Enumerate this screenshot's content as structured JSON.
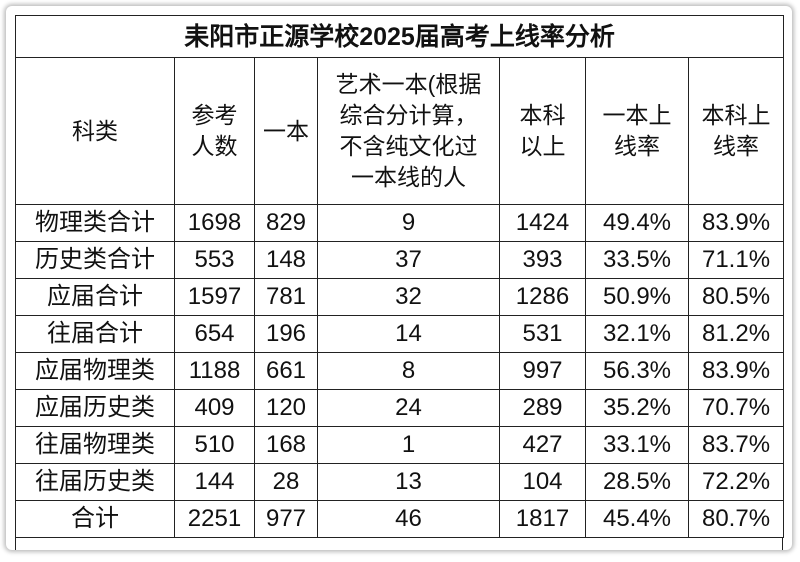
{
  "title": "耒阳市正源学校2025届高考上线率分析",
  "headers": [
    "科类",
    "参考人数",
    "一本",
    "艺术一本(根据综合分计算，不含纯文化过一本线的人",
    "本科以上",
    "一本上线率",
    "本科上线率"
  ],
  "header_lines": [
    [
      "科类"
    ],
    [
      "参考",
      "人数"
    ],
    [
      "一本"
    ],
    [
      "艺术一本(根据",
      "综合分计算,",
      "不含纯文化过",
      "一本线的人"
    ],
    [
      "本科",
      "以上"
    ],
    [
      "一本上",
      "线率"
    ],
    [
      "本科上",
      "线率"
    ]
  ],
  "rows": [
    [
      "物理类合计",
      "1698",
      "829",
      "9",
      "1424",
      "49.4%",
      "83.9%"
    ],
    [
      "历史类合计",
      "553",
      "148",
      "37",
      "393",
      "33.5%",
      "71.1%"
    ],
    [
      "应届合计",
      "1597",
      "781",
      "32",
      "1286",
      "50.9%",
      "80.5%"
    ],
    [
      "往届合计",
      "654",
      "196",
      "14",
      "531",
      "32.1%",
      "81.2%"
    ],
    [
      "应届物理类",
      "1188",
      "661",
      "8",
      "997",
      "56.3%",
      "83.9%"
    ],
    [
      "应届历史类",
      "409",
      "120",
      "24",
      "289",
      "35.2%",
      "70.7%"
    ],
    [
      "往届物理类",
      "510",
      "168",
      "1",
      "427",
      "33.1%",
      "83.7%"
    ],
    [
      "往届历史类",
      "144",
      "28",
      "13",
      "104",
      "28.5%",
      "72.2%"
    ],
    [
      "合计",
      "2251",
      "977",
      "46",
      "1817",
      "45.4%",
      "80.7%"
    ]
  ]
}
